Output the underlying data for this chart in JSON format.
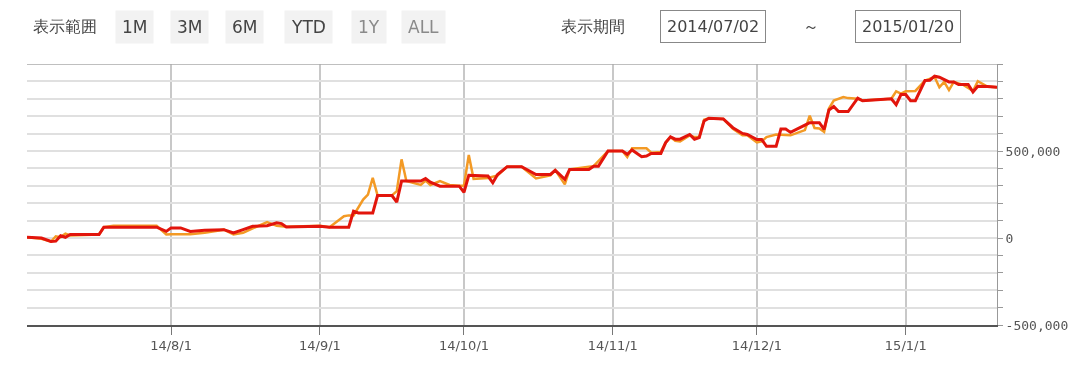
{
  "chart_data": {
    "type": "line",
    "annotations": [
      "表示範囲",
      "1M",
      "3M",
      "6M",
      "YTD",
      "1Y",
      "ALL",
      "表示期間",
      "2014/07/02",
      "～",
      "2015/01/20"
    ],
    "series": [
      {
        "color": "#f39a25",
        "x": [
          "2014-07-02",
          "2014-07-05",
          "2014-07-07",
          "2014-07-08",
          "2014-07-09",
          "2014-07-10",
          "2014-07-11",
          "2014-07-17",
          "2014-07-18",
          "2014-07-20",
          "2014-07-29",
          "2014-07-31",
          "2014-08-01",
          "2014-08-05",
          "2014-08-08",
          "2014-08-12",
          "2014-08-14",
          "2014-08-16",
          "2014-08-18",
          "2014-08-21",
          "2014-08-23",
          "2014-08-25",
          "2014-09-01",
          "2014-09-03",
          "2014-09-06",
          "2014-09-07",
          "2014-09-08",
          "2014-09-10",
          "2014-09-11",
          "2014-09-12",
          "2014-09-13",
          "2014-09-16",
          "2014-09-17",
          "2014-09-18",
          "2014-09-19",
          "2014-09-22",
          "2014-09-23",
          "2014-09-24",
          "2014-09-26",
          "2014-09-28",
          "2014-09-30",
          "2014-10-01",
          "2014-10-02",
          "2014-10-03",
          "2014-10-06",
          "2014-10-08",
          "2014-10-10",
          "2014-10-13",
          "2014-10-15",
          "2014-10-16",
          "2014-10-19",
          "2014-10-20",
          "2014-10-22",
          "2014-10-23",
          "2014-10-27",
          "2014-10-28",
          "2014-10-31",
          "2014-11-03",
          "2014-11-04",
          "2014-11-05",
          "2014-11-08",
          "2014-11-09",
          "2014-11-11",
          "2014-11-12",
          "2014-11-13",
          "2014-11-14",
          "2014-11-15",
          "2014-11-17",
          "2014-11-18",
          "2014-11-19",
          "2014-11-20",
          "2014-11-21",
          "2014-11-24",
          "2014-11-26",
          "2014-11-28",
          "2014-11-29",
          "2014-12-01",
          "2014-12-02",
          "2014-12-03",
          "2014-12-05",
          "2014-12-08",
          "2014-12-11",
          "2014-12-12",
          "2014-12-13",
          "2014-12-14",
          "2014-12-15",
          "2014-12-16",
          "2014-12-17",
          "2014-12-19",
          "2014-12-20",
          "2014-12-22",
          "2014-12-23",
          "2014-12-29",
          "2014-12-30",
          "2014-12-31",
          "2015-01-01",
          "2015-01-03",
          "2015-01-05",
          "2015-01-07",
          "2015-01-08",
          "2015-01-09",
          "2015-01-10",
          "2015-01-11",
          "2015-01-13",
          "2015-01-15",
          "2015-01-16",
          "2015-01-18",
          "2015-01-20"
        ],
        "values": [
          5000,
          -5000,
          -20000,
          10000,
          5000,
          25000,
          15000,
          20000,
          62000,
          70000,
          70000,
          20000,
          22000,
          22000,
          30000,
          48000,
          20000,
          30000,
          55000,
          92000,
          70000,
          65000,
          70000,
          62000,
          125000,
          130000,
          130000,
          221000,
          250000,
          346000,
          245000,
          245000,
          269000,
          452000,
          327000,
          305000,
          330000,
          305000,
          327000,
          305000,
          300000,
          300000,
          477000,
          340000,
          345000,
          360000,
          410000,
          410000,
          365000,
          342000,
          360000,
          390000,
          308000,
          394000,
          410000,
          413000,
          500000,
          500000,
          465000,
          516000,
          516000,
          490000,
          495000,
          548000,
          581000,
          559000,
          555000,
          590000,
          580000,
          580000,
          680000,
          688000,
          684000,
          628000,
          590000,
          590000,
          550000,
          555000,
          580000,
          595000,
          590000,
          620000,
          703000,
          632000,
          630000,
          610000,
          745000,
          790000,
          810000,
          804000,
          800000,
          790000,
          800000,
          843000,
          830000,
          843000,
          845000,
          905000,
          925000,
          866000,
          897000,
          850000,
          897000,
          880000,
          845000,
          901000,
          870000,
          866000
        ]
      },
      {
        "color": "#e2150c",
        "x": [
          "2014-07-02",
          "2014-07-05",
          "2014-07-07",
          "2014-07-08",
          "2014-07-09",
          "2014-07-10",
          "2014-07-11",
          "2014-07-17",
          "2014-07-18",
          "2014-07-29",
          "2014-07-31",
          "2014-08-01",
          "2014-08-03",
          "2014-08-05",
          "2014-08-08",
          "2014-08-12",
          "2014-08-14",
          "2014-08-16",
          "2014-08-18",
          "2014-08-21",
          "2014-08-23",
          "2014-08-24",
          "2014-08-25",
          "2014-09-01",
          "2014-09-03",
          "2014-09-07",
          "2014-09-08",
          "2014-09-09",
          "2014-09-12",
          "2014-09-13",
          "2014-09-16",
          "2014-09-17",
          "2014-09-18",
          "2014-09-22",
          "2014-09-23",
          "2014-09-24",
          "2014-09-26",
          "2014-09-30",
          "2014-10-01",
          "2014-10-02",
          "2014-10-06",
          "2014-10-07",
          "2014-10-08",
          "2014-10-10",
          "2014-10-13",
          "2014-10-16",
          "2014-10-19",
          "2014-10-20",
          "2014-10-22",
          "2014-10-23",
          "2014-10-27",
          "2014-10-28",
          "2014-10-29",
          "2014-10-31",
          "2014-11-03",
          "2014-11-04",
          "2014-11-05",
          "2014-11-07",
          "2014-11-08",
          "2014-11-09",
          "2014-11-11",
          "2014-11-12",
          "2014-11-13",
          "2014-11-14",
          "2014-11-15",
          "2014-11-17",
          "2014-11-18",
          "2014-11-19",
          "2014-11-20",
          "2014-11-21",
          "2014-11-24",
          "2014-11-26",
          "2014-11-28",
          "2014-11-29",
          "2014-12-01",
          "2014-12-02",
          "2014-12-03",
          "2014-12-05",
          "2014-12-06",
          "2014-12-07",
          "2014-12-08",
          "2014-12-11",
          "2014-12-12",
          "2014-12-14",
          "2014-12-15",
          "2014-12-16",
          "2014-12-17",
          "2014-12-18",
          "2014-12-20",
          "2014-12-22",
          "2014-12-23",
          "2014-12-26",
          "2014-12-29",
          "2014-12-30",
          "2014-12-31",
          "2015-01-01",
          "2015-01-02",
          "2015-01-03",
          "2015-01-05",
          "2015-01-06",
          "2015-01-07",
          "2015-01-08",
          "2015-01-10",
          "2015-01-11",
          "2015-01-12",
          "2015-01-14",
          "2015-01-15",
          "2015-01-16",
          "2015-01-18",
          "2015-01-20"
        ],
        "values": [
          5000,
          0,
          -20000,
          -18000,
          13000,
          4000,
          20000,
          20000,
          62000,
          62000,
          38000,
          58000,
          58000,
          38000,
          44000,
          48000,
          29000,
          48000,
          67000,
          71000,
          87000,
          83000,
          63000,
          67000,
          62000,
          62000,
          154000,
          144000,
          144000,
          244000,
          244000,
          206000,
          327000,
          327000,
          342000,
          321000,
          298000,
          298000,
          263000,
          360000,
          356000,
          317000,
          365000,
          410000,
          410000,
          365000,
          365000,
          389000,
          337000,
          394000,
          394000,
          413000,
          413000,
          500000,
          500000,
          481000,
          506000,
          467000,
          471000,
          486000,
          486000,
          548000,
          581000,
          568000,
          568000,
          595000,
          568000,
          577000,
          673000,
          688000,
          684000,
          634000,
          601000,
          595000,
          566000,
          566000,
          527000,
          527000,
          626000,
          626000,
          607000,
          649000,
          663000,
          663000,
          624000,
          736000,
          756000,
          727000,
          727000,
          804000,
          789000,
          795000,
          800000,
          766000,
          824000,
          824000,
          789000,
          789000,
          905000,
          907000,
          930000,
          924000,
          897000,
          897000,
          882000,
          882000,
          839000,
          872000,
          870000,
          866000
        ]
      }
    ],
    "xlim": [
      "2014-07-02",
      "2015-01-20"
    ],
    "xticks": [
      {
        "value": "2014-08-01",
        "label": "14/8/1"
      },
      {
        "value": "2014-09-01",
        "label": "14/9/1"
      },
      {
        "value": "2014-10-01",
        "label": "14/10/1"
      },
      {
        "value": "2014-11-01",
        "label": "14/11/1"
      },
      {
        "value": "2014-12-01",
        "label": "14/12/1"
      },
      {
        "value": "2015-01-01",
        "label": "15/1/1"
      }
    ],
    "ylim": [
      -500000,
      1000000
    ],
    "yticks": [
      {
        "value": -500000,
        "label": "-500,000"
      },
      {
        "value": -400000,
        "label": null
      },
      {
        "value": -300000,
        "label": null
      },
      {
        "value": -200000,
        "label": null
      },
      {
        "value": -100000,
        "label": null
      },
      {
        "value": 0,
        "label": "0"
      },
      {
        "value": 100000,
        "label": null
      },
      {
        "value": 200000,
        "label": null
      },
      {
        "value": 300000,
        "label": null
      },
      {
        "value": 400000,
        "label": null
      },
      {
        "value": 500000,
        "label": "500,000"
      },
      {
        "value": 600000,
        "label": null
      },
      {
        "value": 700000,
        "label": null
      },
      {
        "value": 800000,
        "label": null
      },
      {
        "value": 900000,
        "label": null
      },
      {
        "value": 1000000,
        "label": null
      }
    ],
    "grid": true,
    "marker": "none",
    "line_style": "solid"
  }
}
